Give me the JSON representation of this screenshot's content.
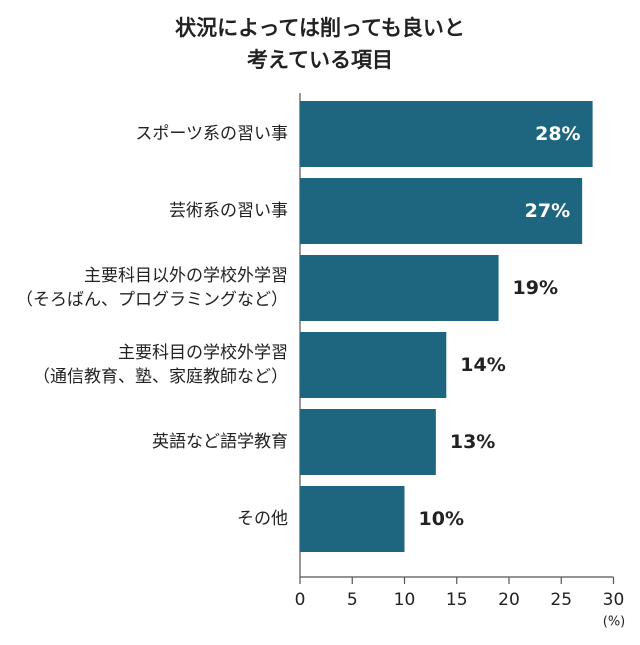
{
  "chart_data": {
    "type": "bar",
    "orientation": "horizontal",
    "title_lines": [
      "状況によっては削っても良いと",
      "考えている項目"
    ],
    "categories": [
      [
        "スポーツ系の習い事"
      ],
      [
        "芸術系の習い事"
      ],
      [
        "主要科目以外の学校外学習",
        "（そろばん、プログラミングなど）"
      ],
      [
        "主要科目の学校外学習",
        "（通信教育、塾、家庭教師など）"
      ],
      [
        "英語など語学教育"
      ],
      [
        "その他"
      ]
    ],
    "values": [
      28,
      27,
      19,
      14,
      13,
      10
    ],
    "value_labels": [
      "28%",
      "27%",
      "19%",
      "14%",
      "13%",
      "10%"
    ],
    "xlim": [
      0,
      30
    ],
    "xticks": [
      0,
      5,
      10,
      15,
      20,
      25,
      30
    ],
    "xticklabels": [
      "0",
      "5",
      "10",
      "15",
      "20",
      "25",
      "30"
    ],
    "unit_label": "(%)",
    "grid": false,
    "colors": {
      "bar": "#1e6580",
      "label_inside": "#ffffff",
      "label_outside": "#222222",
      "axis": "#555555"
    }
  }
}
